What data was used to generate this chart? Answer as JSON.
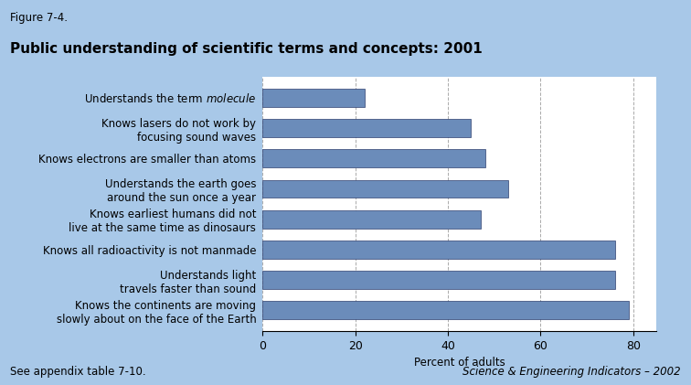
{
  "figure_label": "Figure 7-4.",
  "title": "Public understanding of scientific terms and concepts: 2001",
  "categories": [
    "Knows the continents are moving\nslowly about on the face of the Earth",
    "Understands light\ntravels faster than sound",
    "Knows all radioactivity is not manmade",
    "Knows earliest humans did not\nlive at the same time as dinosaurs",
    "Understands the earth goes\naround the sun once a year",
    "Knows electrons are smaller than atoms",
    "Knows lasers do not work by\nfocusing sound waves",
    "Understands the term $\\it{molecule}$"
  ],
  "values": [
    79,
    76,
    76,
    47,
    53,
    48,
    45,
    22
  ],
  "bar_color": "#6b8cba",
  "bar_edge_color": "#2e3f6e",
  "background_color": "#a8c8e8",
  "plot_background_color": "#ffffff",
  "xlabel": "Percent of adults",
  "xlim": [
    0,
    85
  ],
  "xticks": [
    0,
    20,
    40,
    60,
    80
  ],
  "footnote_left": "See appendix table 7-10.",
  "footnote_right": "Science & Engineering Indicators – 2002",
  "grid_color": "#aaaaaa",
  "title_fontsize": 11,
  "label_fontsize": 8.5,
  "tick_fontsize": 9,
  "footnote_fontsize": 8.5
}
